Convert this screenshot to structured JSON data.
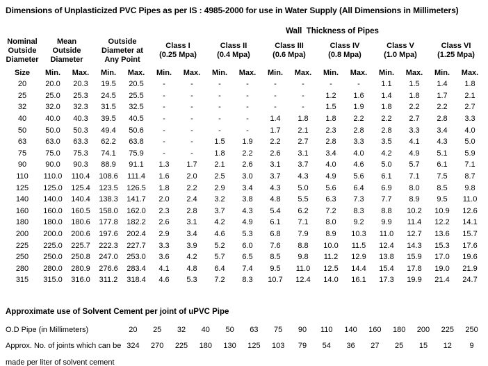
{
  "title": "Dimensions of Unplasticized PVC Pipes as per IS : 4985-2000 for use in Water Supply (All Dimensions in Millimeters)",
  "colors": {
    "text": "#000000",
    "background": "#ffffff"
  },
  "main_table": {
    "wall_thickness_heading": "Wall  Thickness of Pipes",
    "groups": [
      {
        "id": "nominal-outside-diameter",
        "label": "Nominal\nOutside\nDiameter",
        "span": 1
      },
      {
        "id": "mean-outside-diameter",
        "label": "Mean\nOutside\nDiameter",
        "span": 2
      },
      {
        "id": "outside-diameter-any-point",
        "label": "Outside\nDiameter at\nAny Point",
        "span": 2
      },
      {
        "id": "class-i",
        "label": "Class I\n(0.25 Mpa)",
        "span": 2
      },
      {
        "id": "class-ii",
        "label": "Class II\n(0.4 Mpa)",
        "span": 2
      },
      {
        "id": "class-iii",
        "label": "Class III\n(0.6 Mpa)",
        "span": 2
      },
      {
        "id": "class-iv",
        "label": "Class IV\n(0.8 Mpa)",
        "span": 2
      },
      {
        "id": "class-v",
        "label": "Class V\n(1.0 Mpa)",
        "span": 2
      },
      {
        "id": "class-vi",
        "label": "Class VI\n(1.25 Mpa)",
        "span": 2
      }
    ],
    "sub_headers": [
      "Size",
      "Min.",
      "Max.",
      "Min.",
      "Max.",
      "Min.",
      "Max.",
      "Min.",
      "Max.",
      "Min.",
      "Max.",
      "Min.",
      "Max.",
      "Min.",
      "Max.",
      "Min.",
      "Max."
    ],
    "rows": [
      [
        "20",
        "20.0",
        "20.3",
        "19.5",
        "20.5",
        "-",
        "-",
        "-",
        "-",
        "-",
        "-",
        "-",
        "-",
        "1.1",
        "1.5",
        "1.4",
        "1.8"
      ],
      [
        "25",
        "25.0",
        "25.3",
        "24.5",
        "25.5",
        "-",
        "-",
        "-",
        "-",
        "-",
        "-",
        "1.2",
        "1.6",
        "1.4",
        "1.8",
        "1.7",
        "2.1"
      ],
      [
        "32",
        "32.0",
        "32.3",
        "31.5",
        "32.5",
        "-",
        "-",
        "-",
        "-",
        "-",
        "-",
        "1.5",
        "1.9",
        "1.8",
        "2.2",
        "2.2",
        "2.7"
      ],
      [
        "40",
        "40.0",
        "40.3",
        "39.5",
        "40.5",
        "-",
        "-",
        "-",
        "-",
        "1.4",
        "1.8",
        "1.8",
        "2.2",
        "2.2",
        "2.7",
        "2.8",
        "3.3"
      ],
      [
        "50",
        "50.0",
        "50.3",
        "49.4",
        "50.6",
        "-",
        "-",
        "-",
        "-",
        "1.7",
        "2.1",
        "2.3",
        "2.8",
        "2.8",
        "3.3",
        "3.4",
        "4.0"
      ],
      [
        "63",
        "63.0",
        "63.3",
        "62.2",
        "63.8",
        "-",
        "-",
        "1.5",
        "1.9",
        "2.2",
        "2.7",
        "2.8",
        "3.3",
        "3.5",
        "4.1",
        "4.3",
        "5.0"
      ],
      [
        "75",
        "75.0",
        "75.3",
        "74.1",
        "75.9",
        "-",
        "-",
        "1.8",
        "2.2",
        "2.6",
        "3.1",
        "3.4",
        "4.0",
        "4.2",
        "4.9",
        "5.1",
        "5.9"
      ],
      [
        "90",
        "90.0",
        "90.3",
        "88.9",
        "91.1",
        "1.3",
        "1.7",
        "2.1",
        "2.6",
        "3.1",
        "3.7",
        "4.0",
        "4.6",
        "5.0",
        "5.7",
        "6.1",
        "7.1"
      ],
      [
        "110",
        "110.0",
        "110.4",
        "108.6",
        "111.4",
        "1.6",
        "2.0",
        "2.5",
        "3.0",
        "3.7",
        "4.3",
        "4.9",
        "5.6",
        "6.1",
        "7.1",
        "7.5",
        "8.7"
      ],
      [
        "125",
        "125.0",
        "125.4",
        "123.5",
        "126.5",
        "1.8",
        "2.2",
        "2.9",
        "3.4",
        "4.3",
        "5.0",
        "5.6",
        "6.4",
        "6.9",
        "8.0",
        "8.5",
        "9.8"
      ],
      [
        "140",
        "140.0",
        "140.4",
        "138.3",
        "141.7",
        "2.0",
        "2.4",
        "3.2",
        "3.8",
        "4.8",
        "5.5",
        "6.3",
        "7.3",
        "7.7",
        "8.9",
        "9.5",
        "11.0"
      ],
      [
        "160",
        "160.0",
        "160.5",
        "158.0",
        "162.0",
        "2.3",
        "2.8",
        "3.7",
        "4.3",
        "5.4",
        "6.2",
        "7.2",
        "8.3",
        "8.8",
        "10.2",
        "10.9",
        "12.6"
      ],
      [
        "180",
        "180.0",
        "180.6",
        "177.8",
        "182.2",
        "2.6",
        "3.1",
        "4.2",
        "4.9",
        "6.1",
        "7.1",
        "8.0",
        "9.2",
        "9.9",
        "11.4",
        "12.2",
        "14.1"
      ],
      [
        "200",
        "200.0",
        "200.6",
        "197.6",
        "202.4",
        "2.9",
        "3.4",
        "4.6",
        "5.3",
        "6.8",
        "7.9",
        "8.9",
        "10.3",
        "11.0",
        "12.7",
        "13.6",
        "15.7"
      ],
      [
        "225",
        "225.0",
        "225.7",
        "222.3",
        "227.7",
        "3.3",
        "3.9",
        "5.2",
        "6.0",
        "7.6",
        "8.8",
        "10.0",
        "11.5",
        "12.4",
        "14.3",
        "15.3",
        "17.6"
      ],
      [
        "250",
        "250.0",
        "250.8",
        "247.0",
        "253.0",
        "3.6",
        "4.2",
        "5.7",
        "6.5",
        "8.5",
        "9.8",
        "11.2",
        "12.9",
        "13.8",
        "15.9",
        "17.0",
        "19.6"
      ],
      [
        "280",
        "280.0",
        "280.9",
        "276.6",
        "283.4",
        "4.1",
        "4.8",
        "6.4",
        "7.4",
        "9.5",
        "11.0",
        "12.5",
        "14.4",
        "15.4",
        "17.8",
        "19.0",
        "21.9"
      ],
      [
        "315",
        "315.0",
        "316.0",
        "311.2",
        "318.4",
        "4.6",
        "5.3",
        "7.2",
        "8.3",
        "10.7",
        "12.4",
        "14.0",
        "16.1",
        "17.3",
        "19.9",
        "21.4",
        "24.7"
      ]
    ]
  },
  "solvent_table": {
    "heading": "Approximate use of Solvent Cement per joint of uPVC Pipe",
    "rows": [
      {
        "id": "od-pipe",
        "label": "O.D Pipe (in Millimeters)",
        "values": [
          "20",
          "25",
          "32",
          "40",
          "50",
          "63",
          "75",
          "90",
          "110",
          "140",
          "160",
          "180",
          "200",
          "225",
          "250"
        ]
      },
      {
        "id": "joints-per-liter",
        "label": "Approx. No. of joints which can be",
        "values": [
          "324",
          "270",
          "225",
          "180",
          "130",
          "125",
          "103",
          "79",
          "54",
          "36",
          "27",
          "25",
          "15",
          "12",
          "9"
        ]
      }
    ],
    "footer_line": "made per liter of solvent cement"
  }
}
